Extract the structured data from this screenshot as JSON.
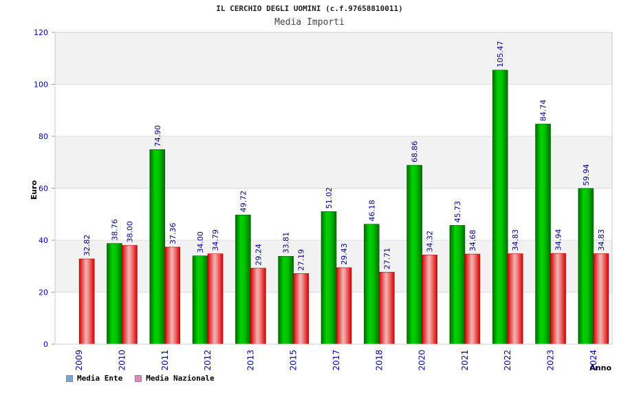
{
  "chart_data": {
    "type": "bar",
    "title": "IL CERCHIO DEGLI UOMINI (c.f.97658810011)",
    "subtitle": "Media Importi",
    "ylabel": "Euro",
    "xlabel": "Anno",
    "categories": [
      "2009",
      "2010",
      "2011",
      "2012",
      "2013",
      "2015",
      "2017",
      "2018",
      "2020",
      "2021",
      "2022",
      "2023",
      "2024"
    ],
    "series": [
      {
        "name": "Media Ente",
        "values": [
          null,
          38.76,
          74.9,
          34.0,
          49.72,
          33.81,
          51.02,
          46.18,
          68.86,
          45.73,
          105.47,
          84.74,
          59.94
        ],
        "labels": [
          "",
          "38.76",
          "74.90",
          "34.00",
          "49.72",
          "33.81",
          "51.02",
          "46.18",
          "68.86",
          "45.73",
          "105.47",
          "84.74",
          "59.94"
        ],
        "color": "#00b400"
      },
      {
        "name": "Media Nazionale",
        "values": [
          32.82,
          38.0,
          37.36,
          34.79,
          29.24,
          27.19,
          29.43,
          27.71,
          34.32,
          34.68,
          34.83,
          34.94,
          34.83
        ],
        "labels": [
          "32.82",
          "38.00",
          "37.36",
          "34.79",
          "29.24",
          "27.19",
          "29.43",
          "27.71",
          "34.32",
          "34.68",
          "34.83",
          "34.94",
          "34.83"
        ],
        "color": "#e60000"
      }
    ],
    "ylim": [
      0,
      120
    ],
    "yticks": [
      0,
      20,
      40,
      60,
      80,
      100,
      120
    ],
    "ytick_labels": [
      "0",
      "20",
      "40",
      "60",
      "80",
      "100",
      "120"
    ],
    "grid": true,
    "legend_position": "bottom-left",
    "legend_colors": {
      "Media Ente": "#6fa8e0",
      "Media Nazionale": "#e088b8"
    },
    "axis_color": "#0000aa",
    "band_color": "#f2f2f2"
  }
}
